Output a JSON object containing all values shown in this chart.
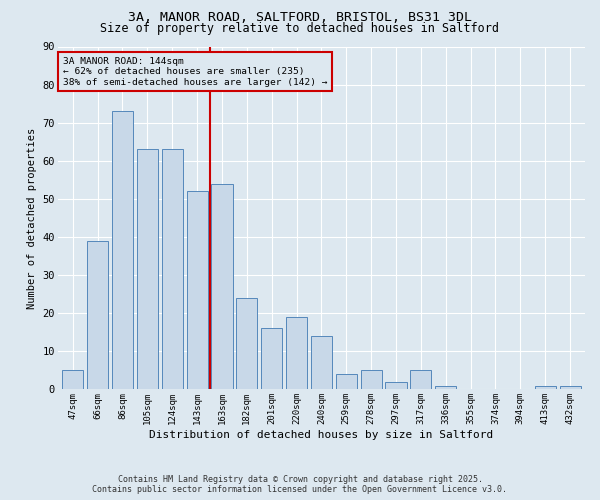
{
  "title1": "3A, MANOR ROAD, SALTFORD, BRISTOL, BS31 3DL",
  "title2": "Size of property relative to detached houses in Saltford",
  "xlabel": "Distribution of detached houses by size in Saltford",
  "ylabel": "Number of detached properties",
  "categories": [
    "47sqm",
    "66sqm",
    "86sqm",
    "105sqm",
    "124sqm",
    "143sqm",
    "163sqm",
    "182sqm",
    "201sqm",
    "220sqm",
    "240sqm",
    "259sqm",
    "278sqm",
    "297sqm",
    "317sqm",
    "336sqm",
    "355sqm",
    "374sqm",
    "394sqm",
    "413sqm",
    "432sqm"
  ],
  "values": [
    5,
    39,
    73,
    63,
    63,
    52,
    54,
    24,
    16,
    19,
    14,
    4,
    5,
    2,
    5,
    1,
    0,
    0,
    0,
    1,
    1
  ],
  "bar_color": "#c8d8e8",
  "bar_edge_color": "#5588bb",
  "marker_index": 5,
  "marker_label": "3A MANOR ROAD: 144sqm",
  "annotation_line1": "← 62% of detached houses are smaller (235)",
  "annotation_line2": "38% of semi-detached houses are larger (142) →",
  "vline_color": "#cc0000",
  "box_edge_color": "#cc0000",
  "background_color": "#dde8f0",
  "grid_color": "#ffffff",
  "footnote1": "Contains HM Land Registry data © Crown copyright and database right 2025.",
  "footnote2": "Contains public sector information licensed under the Open Government Licence v3.0.",
  "ylim": [
    0,
    90
  ],
  "yticks": [
    0,
    10,
    20,
    30,
    40,
    50,
    60,
    70,
    80,
    90
  ]
}
